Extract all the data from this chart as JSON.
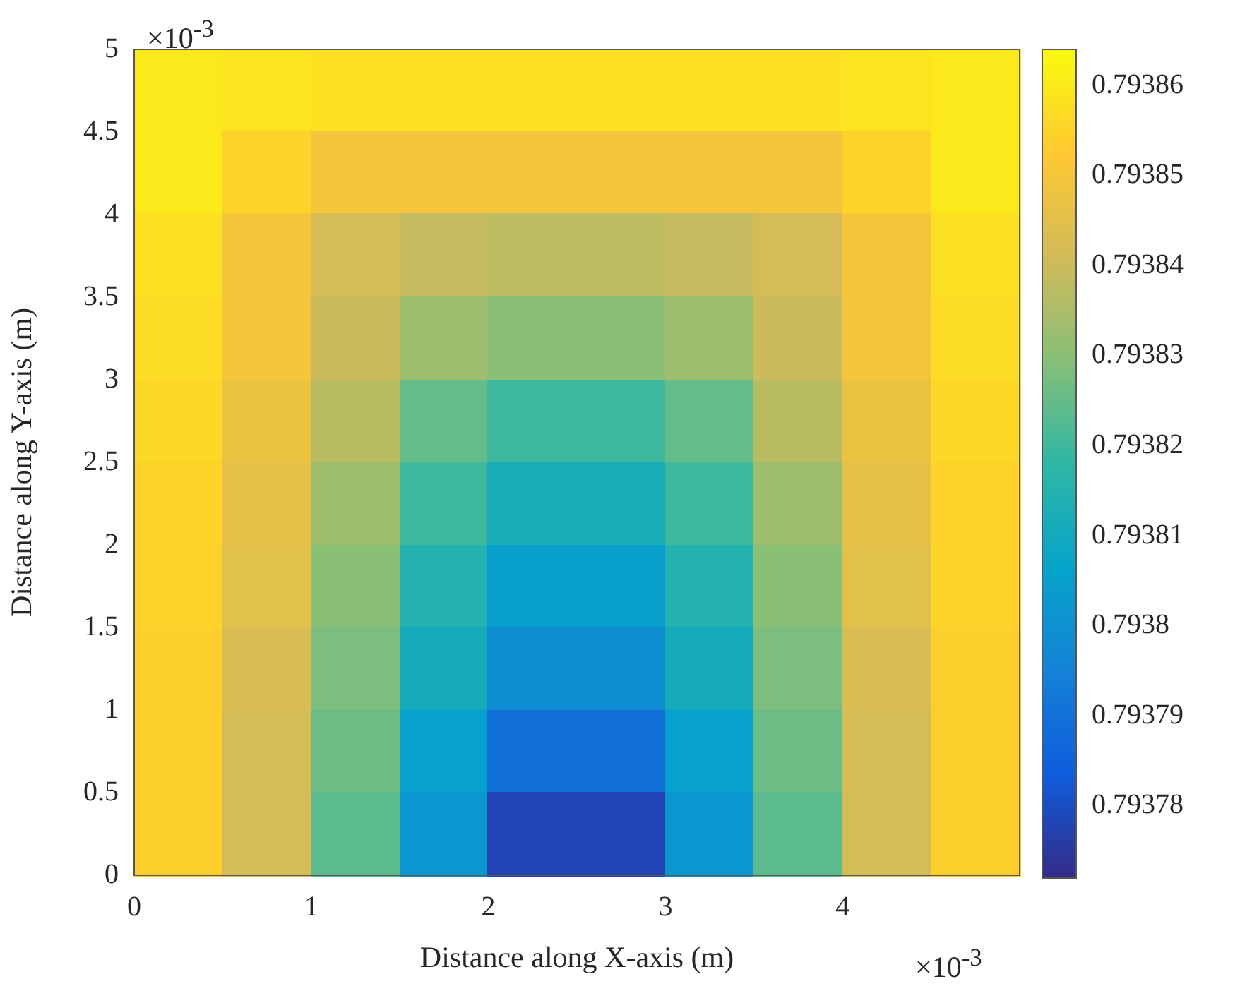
{
  "chart_data": {
    "type": "heatmap",
    "xlabel": "Distance along X-axis (m)",
    "ylabel": "Distance along Y-axis (m)",
    "annotations": [
      "×10$^{-3}$",
      "×10$^{-3}$"
    ],
    "xlim": [
      0,
      5
    ],
    "xticks": [
      0,
      1,
      2,
      3,
      4
    ],
    "ylim": [
      0,
      5
    ],
    "yticks": [
      0,
      0.5,
      1,
      1.5,
      2,
      2.5,
      3,
      3.5,
      4,
      4.5,
      5
    ],
    "clim": [
      0.793772,
      0.793864
    ],
    "cticks": [
      0.79378,
      0.79379,
      0.7938,
      0.79381,
      0.79382,
      0.79383,
      0.79384,
      0.79385,
      0.79386
    ],
    "cells": [
      [
        0.79386,
        0.793859,
        0.793858,
        0.793858,
        0.793858,
        0.793858,
        0.793858,
        0.793858,
        0.793859,
        0.79386
      ],
      [
        0.79386,
        0.793855,
        0.79385,
        0.79385,
        0.79385,
        0.79385,
        0.79385,
        0.79385,
        0.793855,
        0.79386
      ],
      [
        0.793858,
        0.79385,
        0.793842,
        0.793839,
        0.793838,
        0.793838,
        0.793839,
        0.793842,
        0.79385,
        0.793858
      ],
      [
        0.793857,
        0.79385,
        0.79384,
        0.793833,
        0.79383,
        0.79383,
        0.793833,
        0.79384,
        0.79385,
        0.793857
      ],
      [
        0.793856,
        0.793848,
        0.793837,
        0.793825,
        0.79382,
        0.79382,
        0.793825,
        0.793837,
        0.793848,
        0.793856
      ],
      [
        0.793855,
        0.793846,
        0.793833,
        0.79382,
        0.793812,
        0.793812,
        0.79382,
        0.793833,
        0.793846,
        0.793855
      ],
      [
        0.793855,
        0.793845,
        0.79383,
        0.793815,
        0.793805,
        0.793805,
        0.793815,
        0.79383,
        0.793845,
        0.793855
      ],
      [
        0.793854,
        0.793843,
        0.793828,
        0.793811,
        0.793799,
        0.793799,
        0.793811,
        0.793828,
        0.793843,
        0.793854
      ],
      [
        0.793854,
        0.793842,
        0.793826,
        0.793806,
        0.79379,
        0.79379,
        0.793806,
        0.793826,
        0.793842,
        0.793854
      ],
      [
        0.793854,
        0.793842,
        0.793824,
        0.793802,
        0.793778,
        0.793778,
        0.793802,
        0.793824,
        0.793842,
        0.793854
      ]
    ]
  }
}
